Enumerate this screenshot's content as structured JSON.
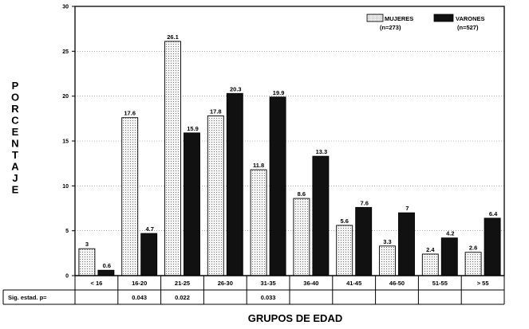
{
  "chart_data": {
    "type": "bar",
    "ylabel": "PORCENTAJE",
    "xlabel": "GRUPOS DE EDAD",
    "ylim": [
      0,
      30
    ],
    "yticks": [
      "0",
      "5",
      "10",
      "15",
      "20",
      "25",
      "30"
    ],
    "grid": "horizontal dotted",
    "legend_position": "top-right",
    "categories": [
      "< 16",
      "16-20",
      "21-25",
      "26-30",
      "31-35",
      "36-40",
      "41-45",
      "46-50",
      "51-55",
      "> 55"
    ],
    "series": [
      {
        "name": "MUJERES",
        "n_label": "(n=273)",
        "pattern": "dotted",
        "color": "#f2f2f2",
        "values": [
          3,
          17.6,
          26.1,
          17.8,
          11.8,
          8.6,
          5.6,
          3.3,
          2.4,
          2.6
        ],
        "labels": [
          "3",
          "17.6",
          "26.1",
          "17.8",
          "11.8",
          "8.6",
          "5.6",
          "3.3",
          "2.4",
          "2.6"
        ]
      },
      {
        "name": "VARONES",
        "n_label": "(n=527)",
        "pattern": "solid",
        "color": "#111111",
        "values": [
          0.6,
          4.7,
          15.9,
          20.3,
          19.9,
          13.3,
          7.6,
          7,
          4.2,
          6.4
        ],
        "labels": [
          "0.6",
          "4.7",
          "15.9",
          "20.3",
          "19.9",
          "13.3",
          "7.6",
          "7",
          "4.2",
          "6.4"
        ]
      }
    ],
    "sig_row": {
      "label": "Sig. estad. p=",
      "values": [
        "",
        "0.043",
        "0.022",
        "",
        "0.033",
        "",
        "",
        "",
        "",
        ""
      ]
    }
  }
}
